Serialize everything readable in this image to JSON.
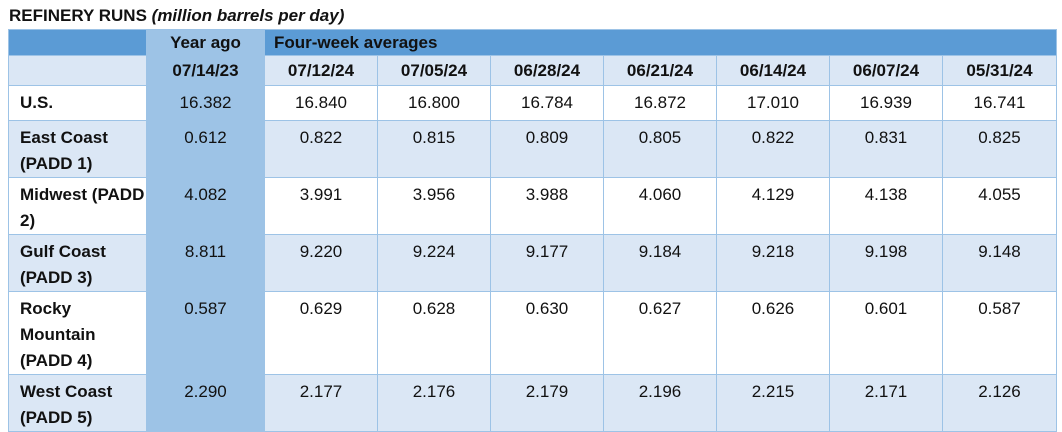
{
  "title": {
    "main": "REFINERY RUNS",
    "unit": "(million barrels per day)"
  },
  "header": {
    "year_ago": "Year ago",
    "four_week": "Four-week averages"
  },
  "dates": [
    "07/14/23",
    "07/12/24",
    "07/05/24",
    "06/28/24",
    "06/21/24",
    "06/14/24",
    "06/07/24",
    "05/31/24"
  ],
  "rows": [
    {
      "label": "U.S.",
      "values": [
        "16.382",
        "16.840",
        "16.800",
        "16.784",
        "16.872",
        "17.010",
        "16.939",
        "16.741"
      ]
    },
    {
      "label": "East Coast (PADD 1)",
      "values": [
        "0.612",
        "0.822",
        "0.815",
        "0.809",
        "0.805",
        "0.822",
        "0.831",
        "0.825"
      ]
    },
    {
      "label": "Midwest (PADD 2)",
      "values": [
        "4.082",
        "3.991",
        "3.956",
        "3.988",
        "4.060",
        "4.129",
        "4.138",
        "4.055"
      ]
    },
    {
      "label": "Gulf Coast (PADD 3)",
      "values": [
        "8.811",
        "9.220",
        "9.224",
        "9.177",
        "9.184",
        "9.218",
        "9.198",
        "9.148"
      ]
    },
    {
      "label": "Rocky Mountain (PADD 4)",
      "values": [
        "0.587",
        "0.629",
        "0.628",
        "0.630",
        "0.627",
        "0.626",
        "0.601",
        "0.587"
      ]
    },
    {
      "label": "West Coast (PADD 5)",
      "values": [
        "2.290",
        "2.177",
        "2.176",
        "2.179",
        "2.196",
        "2.215",
        "2.171",
        "2.126"
      ]
    }
  ]
}
